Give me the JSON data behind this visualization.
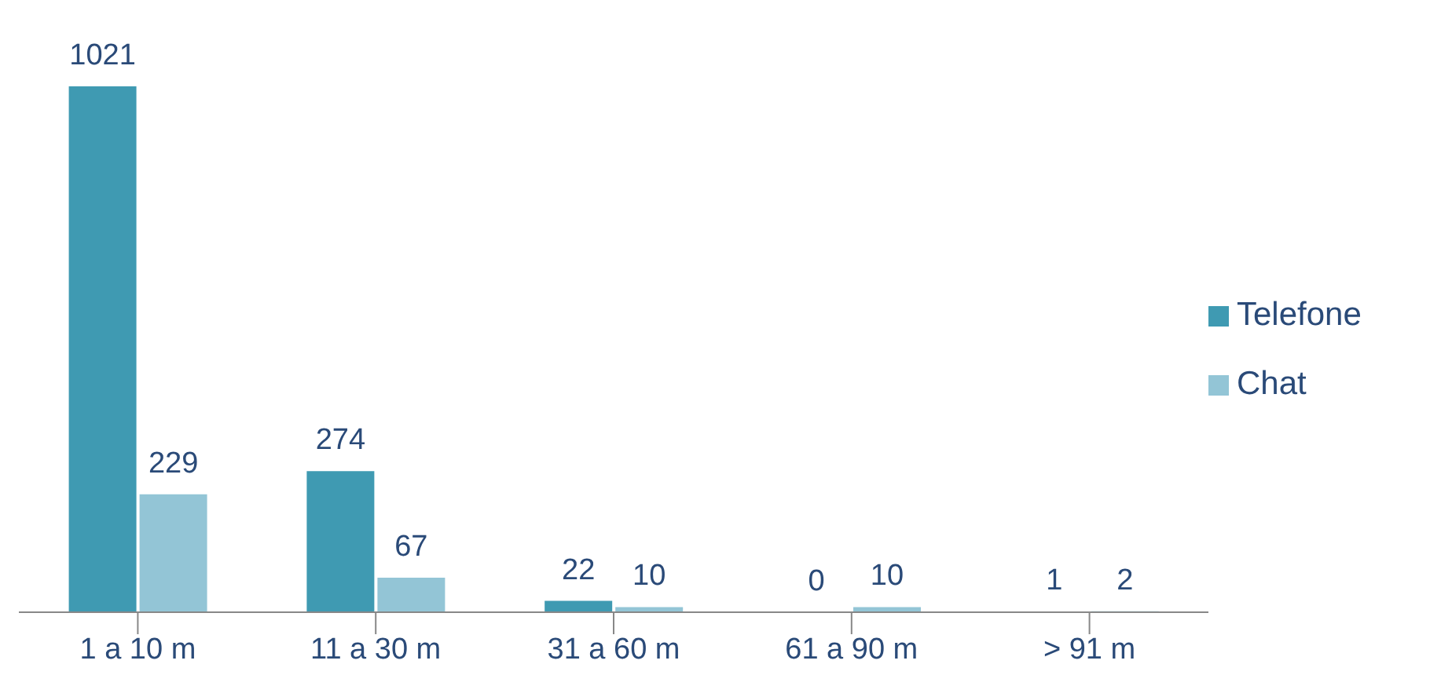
{
  "chart_data": {
    "type": "bar",
    "categories": [
      "1 a 10 m",
      "11 a 30 m",
      "31 a 60 m",
      "61 a 90 m",
      "> 91 m"
    ],
    "series": [
      {
        "name": "Telefone",
        "color": "#3f9ab2",
        "values": [
          1021,
          274,
          22,
          0,
          1
        ]
      },
      {
        "name": "Chat",
        "color": "#93c5d6",
        "values": [
          229,
          67,
          10,
          10,
          2
        ]
      }
    ],
    "data_labels": true,
    "legend": "right",
    "grid": false,
    "tick_labels": "x"
  }
}
